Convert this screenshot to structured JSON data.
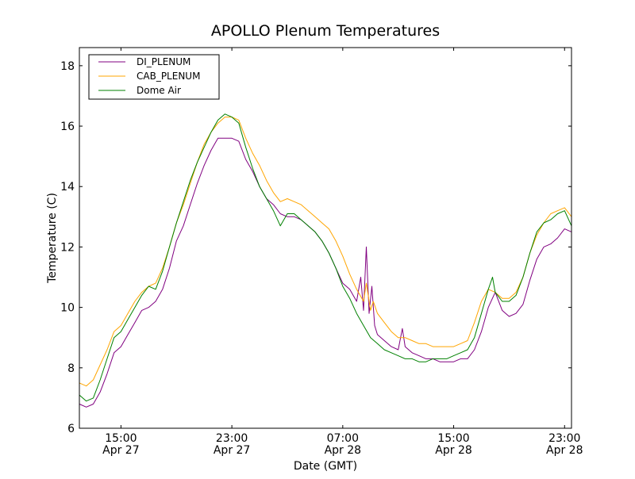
{
  "chart_data": {
    "type": "line",
    "title": "APOLLO Plenum Temperatures",
    "xlabel": "Date (GMT)",
    "ylabel": "Temperature (C)",
    "x_unit": "hours since Apr 27 11:00 GMT",
    "xlim": [
      0,
      35.5
    ],
    "ylim": [
      6,
      18.6
    ],
    "grid": false,
    "legend_position": "top-left",
    "yticks": [
      6,
      8,
      10,
      12,
      14,
      16,
      18
    ],
    "xticks": [
      {
        "x": 3,
        "label": "15:00",
        "sublabel": "Apr 27"
      },
      {
        "x": 11,
        "label": "23:00",
        "sublabel": "Apr 27"
      },
      {
        "x": 19,
        "label": "07:00",
        "sublabel": "Apr 28"
      },
      {
        "x": 27,
        "label": "15:00",
        "sublabel": "Apr 28"
      },
      {
        "x": 35,
        "label": "23:00",
        "sublabel": "Apr 28"
      }
    ],
    "series": [
      {
        "name": "DI_PLENUM",
        "color": "#800080",
        "points": [
          [
            0,
            6.8
          ],
          [
            0.5,
            6.7
          ],
          [
            1,
            6.8
          ],
          [
            1.5,
            7.2
          ],
          [
            2,
            7.8
          ],
          [
            2.5,
            8.5
          ],
          [
            3,
            8.7
          ],
          [
            3.5,
            9.1
          ],
          [
            4,
            9.5
          ],
          [
            4.5,
            9.9
          ],
          [
            5,
            10.0
          ],
          [
            5.5,
            10.2
          ],
          [
            6,
            10.6
          ],
          [
            6.5,
            11.3
          ],
          [
            7,
            12.2
          ],
          [
            7.5,
            12.7
          ],
          [
            8,
            13.4
          ],
          [
            8.5,
            14.1
          ],
          [
            9,
            14.7
          ],
          [
            9.5,
            15.2
          ],
          [
            10,
            15.6
          ],
          [
            10.5,
            15.6
          ],
          [
            11,
            15.6
          ],
          [
            11.5,
            15.5
          ],
          [
            12,
            14.9
          ],
          [
            12.5,
            14.5
          ],
          [
            13,
            14.0
          ],
          [
            13.5,
            13.6
          ],
          [
            14,
            13.4
          ],
          [
            14.5,
            13.1
          ],
          [
            15,
            13.0
          ],
          [
            15.5,
            13.0
          ],
          [
            16,
            12.9
          ],
          [
            16.5,
            12.7
          ],
          [
            17,
            12.5
          ],
          [
            17.5,
            12.2
          ],
          [
            18,
            11.8
          ],
          [
            18.5,
            11.3
          ],
          [
            19,
            10.8
          ],
          [
            19.5,
            10.6
          ],
          [
            20,
            10.2
          ],
          [
            20.3,
            11.0
          ],
          [
            20.5,
            9.9
          ],
          [
            20.7,
            12.0
          ],
          [
            20.9,
            9.8
          ],
          [
            21.1,
            10.7
          ],
          [
            21.3,
            9.4
          ],
          [
            21.5,
            9.1
          ],
          [
            22,
            8.9
          ],
          [
            22.5,
            8.7
          ],
          [
            23,
            8.6
          ],
          [
            23.3,
            9.3
          ],
          [
            23.5,
            8.7
          ],
          [
            24,
            8.5
          ],
          [
            24.5,
            8.4
          ],
          [
            25,
            8.3
          ],
          [
            25.5,
            8.3
          ],
          [
            26,
            8.2
          ],
          [
            26.5,
            8.2
          ],
          [
            27,
            8.2
          ],
          [
            27.5,
            8.3
          ],
          [
            28,
            8.3
          ],
          [
            28.5,
            8.6
          ],
          [
            29,
            9.2
          ],
          [
            29.5,
            10.0
          ],
          [
            30,
            10.5
          ],
          [
            30.5,
            9.9
          ],
          [
            31,
            9.7
          ],
          [
            31.5,
            9.8
          ],
          [
            32,
            10.1
          ],
          [
            32.5,
            10.9
          ],
          [
            33,
            11.6
          ],
          [
            33.5,
            12.0
          ],
          [
            34,
            12.1
          ],
          [
            34.5,
            12.3
          ],
          [
            35,
            12.6
          ],
          [
            35.5,
            12.5
          ]
        ]
      },
      {
        "name": "CAB_PLENUM",
        "color": "#ffa500",
        "points": [
          [
            0,
            7.5
          ],
          [
            0.5,
            7.4
          ],
          [
            1,
            7.6
          ],
          [
            1.5,
            8.1
          ],
          [
            2,
            8.6
          ],
          [
            2.5,
            9.2
          ],
          [
            3,
            9.4
          ],
          [
            3.5,
            9.8
          ],
          [
            4,
            10.2
          ],
          [
            4.5,
            10.5
          ],
          [
            5,
            10.7
          ],
          [
            5.5,
            10.8
          ],
          [
            6,
            11.3
          ],
          [
            6.5,
            12.0
          ],
          [
            7,
            12.8
          ],
          [
            7.5,
            13.4
          ],
          [
            8,
            14.1
          ],
          [
            8.5,
            14.8
          ],
          [
            9,
            15.4
          ],
          [
            9.5,
            15.8
          ],
          [
            10,
            16.1
          ],
          [
            10.5,
            16.3
          ],
          [
            11,
            16.3
          ],
          [
            11.5,
            16.2
          ],
          [
            12,
            15.6
          ],
          [
            12.5,
            15.1
          ],
          [
            13,
            14.7
          ],
          [
            13.5,
            14.2
          ],
          [
            14,
            13.8
          ],
          [
            14.5,
            13.5
          ],
          [
            15,
            13.6
          ],
          [
            15.5,
            13.5
          ],
          [
            16,
            13.4
          ],
          [
            16.5,
            13.2
          ],
          [
            17,
            13.0
          ],
          [
            17.5,
            12.8
          ],
          [
            18,
            12.6
          ],
          [
            18.5,
            12.2
          ],
          [
            19,
            11.7
          ],
          [
            19.5,
            11.1
          ],
          [
            20,
            10.6
          ],
          [
            20.5,
            10.2
          ],
          [
            20.7,
            10.8
          ],
          [
            21,
            9.9
          ],
          [
            21.2,
            10.2
          ],
          [
            21.5,
            9.8
          ],
          [
            22,
            9.5
          ],
          [
            22.5,
            9.2
          ],
          [
            23,
            9.0
          ],
          [
            23.5,
            9.0
          ],
          [
            24,
            8.9
          ],
          [
            24.5,
            8.8
          ],
          [
            25,
            8.8
          ],
          [
            25.5,
            8.7
          ],
          [
            26,
            8.7
          ],
          [
            26.5,
            8.7
          ],
          [
            27,
            8.7
          ],
          [
            27.5,
            8.8
          ],
          [
            28,
            8.9
          ],
          [
            28.5,
            9.5
          ],
          [
            29,
            10.2
          ],
          [
            29.5,
            10.6
          ],
          [
            30,
            10.5
          ],
          [
            30.5,
            10.3
          ],
          [
            31,
            10.3
          ],
          [
            31.5,
            10.5
          ],
          [
            32,
            11.0
          ],
          [
            32.5,
            11.8
          ],
          [
            33,
            12.4
          ],
          [
            33.5,
            12.8
          ],
          [
            34,
            13.1
          ],
          [
            34.5,
            13.2
          ],
          [
            35,
            13.3
          ],
          [
            35.5,
            13.0
          ]
        ]
      },
      {
        "name": "Dome Air",
        "color": "#008000",
        "points": [
          [
            0,
            7.1
          ],
          [
            0.5,
            6.9
          ],
          [
            1,
            7.0
          ],
          [
            1.5,
            7.6
          ],
          [
            2,
            8.3
          ],
          [
            2.5,
            9.0
          ],
          [
            3,
            9.2
          ],
          [
            3.5,
            9.6
          ],
          [
            4,
            10.0
          ],
          [
            4.5,
            10.4
          ],
          [
            5,
            10.7
          ],
          [
            5.5,
            10.6
          ],
          [
            6,
            11.2
          ],
          [
            6.5,
            12.0
          ],
          [
            7,
            12.8
          ],
          [
            7.5,
            13.5
          ],
          [
            8,
            14.2
          ],
          [
            8.5,
            14.8
          ],
          [
            9,
            15.3
          ],
          [
            9.5,
            15.8
          ],
          [
            10,
            16.2
          ],
          [
            10.5,
            16.4
          ],
          [
            11,
            16.3
          ],
          [
            11.5,
            16.1
          ],
          [
            12,
            15.3
          ],
          [
            12.5,
            14.6
          ],
          [
            13,
            14.0
          ],
          [
            13.5,
            13.6
          ],
          [
            14,
            13.2
          ],
          [
            14.5,
            12.7
          ],
          [
            15,
            13.1
          ],
          [
            15.5,
            13.1
          ],
          [
            16,
            12.9
          ],
          [
            16.5,
            12.7
          ],
          [
            17,
            12.5
          ],
          [
            17.5,
            12.2
          ],
          [
            18,
            11.8
          ],
          [
            18.5,
            11.3
          ],
          [
            19,
            10.7
          ],
          [
            19.5,
            10.3
          ],
          [
            20,
            9.8
          ],
          [
            20.5,
            9.4
          ],
          [
            21,
            9.0
          ],
          [
            21.5,
            8.8
          ],
          [
            22,
            8.6
          ],
          [
            22.5,
            8.5
          ],
          [
            23,
            8.4
          ],
          [
            23.5,
            8.3
          ],
          [
            24,
            8.3
          ],
          [
            24.5,
            8.2
          ],
          [
            25,
            8.2
          ],
          [
            25.5,
            8.3
          ],
          [
            26,
            8.3
          ],
          [
            26.5,
            8.3
          ],
          [
            27,
            8.4
          ],
          [
            27.5,
            8.5
          ],
          [
            28,
            8.6
          ],
          [
            28.5,
            9.0
          ],
          [
            29,
            9.8
          ],
          [
            29.5,
            10.6
          ],
          [
            29.8,
            11.0
          ],
          [
            30,
            10.5
          ],
          [
            30.5,
            10.2
          ],
          [
            31,
            10.2
          ],
          [
            31.5,
            10.4
          ],
          [
            32,
            11.0
          ],
          [
            32.5,
            11.8
          ],
          [
            33,
            12.5
          ],
          [
            33.5,
            12.8
          ],
          [
            34,
            12.9
          ],
          [
            34.5,
            13.1
          ],
          [
            35,
            13.2
          ],
          [
            35.5,
            12.7
          ]
        ]
      }
    ]
  }
}
